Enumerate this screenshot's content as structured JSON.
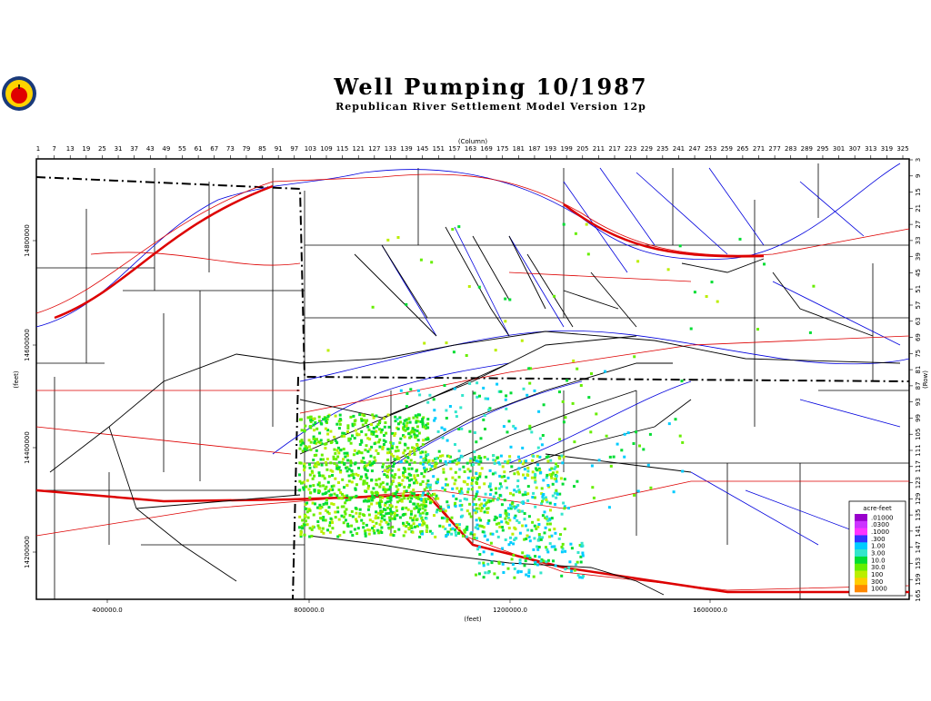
{
  "header": {
    "title": "Well Pumping 10/1987",
    "subtitle": "Republican River Settlement Model Version 12p"
  },
  "axes": {
    "top": {
      "label": "(Column)",
      "ticks": [
        1,
        7,
        13,
        19,
        25,
        31,
        37,
        43,
        49,
        55,
        61,
        67,
        73,
        79,
        85,
        91,
        97,
        103,
        109,
        115,
        121,
        127,
        133,
        139,
        145,
        151,
        157,
        163,
        169,
        175,
        181,
        187,
        193,
        199,
        205,
        211,
        217,
        223,
        229,
        235,
        241,
        247,
        253,
        259,
        265,
        271,
        277,
        283,
        289,
        295,
        301,
        307,
        313,
        319,
        325
      ]
    },
    "right": {
      "label": "(Row)",
      "ticks": [
        3,
        9,
        15,
        21,
        27,
        33,
        39,
        45,
        51,
        57,
        63,
        69,
        75,
        81,
        87,
        93,
        99,
        105,
        111,
        117,
        123,
        129,
        135,
        141,
        147,
        153,
        159,
        165
      ]
    },
    "left": {
      "label": "(feet)",
      "ticks": [
        "14800000",
        "14600000",
        "14400000",
        "14200000"
      ]
    },
    "bottom": {
      "label": "(feet)",
      "ticks": [
        "400000.0",
        "800000.0",
        "1200000.0",
        "1600000.0"
      ]
    }
  },
  "legend": {
    "title": "acre-feet",
    "items": [
      {
        "label": ".01000",
        "color": "#9900cc"
      },
      {
        "label": ".0300",
        "color": "#cc33ff"
      },
      {
        "label": ".1000",
        "color": "#ff33ff"
      },
      {
        "label": ".300",
        "color": "#3333ff"
      },
      {
        "label": "1.00",
        "color": "#00ccff"
      },
      {
        "label": "3.00",
        "color": "#33e6cc"
      },
      {
        "label": "10.0",
        "color": "#00dd33"
      },
      {
        "label": "30.0",
        "color": "#66ee00"
      },
      {
        "label": "100",
        "color": "#bbee00"
      },
      {
        "label": "300",
        "color": "#ffcc00"
      },
      {
        "label": "1000",
        "color": "#ff8800"
      }
    ]
  }
}
